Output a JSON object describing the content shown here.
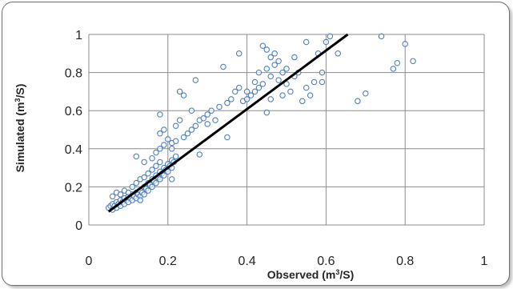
{
  "chart_data": {
    "type": "scatter",
    "title": "",
    "xlabel": "Observed (m",
    "xlabel_sup": "3",
    "xlabel_end": "/S)",
    "ylabel": "Simulated (m",
    "ylabel_sup": "3",
    "ylabel_end": "/S)",
    "xlim": [
      0,
      1
    ],
    "ylim": [
      0,
      1
    ],
    "xticks": [
      0,
      0.2,
      0.4,
      0.6,
      0.8,
      1
    ],
    "yticks": [
      0,
      0.2,
      0.4,
      0.6,
      0.8,
      1
    ],
    "xtick_labels": [
      "0",
      "0.2",
      "0.4",
      "0.6",
      "0.8",
      "1"
    ],
    "ytick_labels": [
      "0",
      "0.2",
      "0.4",
      "0.6",
      "0.8",
      "1"
    ],
    "grid": true,
    "legend": "none",
    "colors": {
      "marker": "#4f81bd",
      "fit_line": "#000000",
      "grid": "#8c8c8c"
    },
    "fit_line": {
      "x": [
        0.05,
        0.655
      ],
      "y": [
        0.07,
        1.0
      ]
    },
    "series": [
      {
        "points": [
          [
            0.05,
            0.09
          ],
          [
            0.055,
            0.1
          ],
          [
            0.06,
            0.08
          ],
          [
            0.06,
            0.11
          ],
          [
            0.065,
            0.1
          ],
          [
            0.07,
            0.09
          ],
          [
            0.07,
            0.12
          ],
          [
            0.075,
            0.11
          ],
          [
            0.08,
            0.1
          ],
          [
            0.08,
            0.13
          ],
          [
            0.085,
            0.12
          ],
          [
            0.09,
            0.11
          ],
          [
            0.09,
            0.14
          ],
          [
            0.095,
            0.13
          ],
          [
            0.1,
            0.12
          ],
          [
            0.1,
            0.15
          ],
          [
            0.105,
            0.14
          ],
          [
            0.11,
            0.13
          ],
          [
            0.11,
            0.16
          ],
          [
            0.115,
            0.15
          ],
          [
            0.12,
            0.14
          ],
          [
            0.12,
            0.17
          ],
          [
            0.125,
            0.16
          ],
          [
            0.13,
            0.15
          ],
          [
            0.13,
            0.18
          ],
          [
            0.135,
            0.17
          ],
          [
            0.14,
            0.16
          ],
          [
            0.14,
            0.2
          ],
          [
            0.145,
            0.19
          ],
          [
            0.15,
            0.18
          ],
          [
            0.15,
            0.22
          ],
          [
            0.155,
            0.21
          ],
          [
            0.16,
            0.2
          ],
          [
            0.16,
            0.24
          ],
          [
            0.165,
            0.23
          ],
          [
            0.17,
            0.22
          ],
          [
            0.17,
            0.26
          ],
          [
            0.175,
            0.25
          ],
          [
            0.18,
            0.24
          ],
          [
            0.18,
            0.28
          ],
          [
            0.185,
            0.27
          ],
          [
            0.19,
            0.26
          ],
          [
            0.19,
            0.3
          ],
          [
            0.195,
            0.29
          ],
          [
            0.2,
            0.28
          ],
          [
            0.2,
            0.32
          ],
          [
            0.205,
            0.31
          ],
          [
            0.21,
            0.3
          ],
          [
            0.21,
            0.34
          ],
          [
            0.215,
            0.33
          ],
          [
            0.06,
            0.15
          ],
          [
            0.07,
            0.17
          ],
          [
            0.08,
            0.16
          ],
          [
            0.09,
            0.18
          ],
          [
            0.1,
            0.17
          ],
          [
            0.11,
            0.2
          ],
          [
            0.12,
            0.22
          ],
          [
            0.13,
            0.24
          ],
          [
            0.14,
            0.25
          ],
          [
            0.15,
            0.27
          ],
          [
            0.16,
            0.29
          ],
          [
            0.17,
            0.31
          ],
          [
            0.18,
            0.33
          ],
          [
            0.12,
            0.36
          ],
          [
            0.14,
            0.33
          ],
          [
            0.16,
            0.35
          ],
          [
            0.17,
            0.38
          ],
          [
            0.18,
            0.4
          ],
          [
            0.18,
            0.48
          ],
          [
            0.19,
            0.42
          ],
          [
            0.19,
            0.5
          ],
          [
            0.18,
            0.58
          ],
          [
            0.2,
            0.45
          ],
          [
            0.21,
            0.4
          ],
          [
            0.21,
            0.43
          ],
          [
            0.22,
            0.44
          ],
          [
            0.22,
            0.52
          ],
          [
            0.23,
            0.55
          ],
          [
            0.23,
            0.7
          ],
          [
            0.24,
            0.46
          ],
          [
            0.25,
            0.48
          ],
          [
            0.26,
            0.5
          ],
          [
            0.27,
            0.52
          ],
          [
            0.27,
            0.76
          ],
          [
            0.28,
            0.55
          ],
          [
            0.29,
            0.56
          ],
          [
            0.3,
            0.58
          ],
          [
            0.31,
            0.6
          ],
          [
            0.33,
            0.62
          ],
          [
            0.34,
            0.83
          ],
          [
            0.35,
            0.46
          ],
          [
            0.35,
            0.64
          ],
          [
            0.36,
            0.66
          ],
          [
            0.37,
            0.7
          ],
          [
            0.38,
            0.72
          ],
          [
            0.39,
            0.65
          ],
          [
            0.4,
            0.66
          ],
          [
            0.4,
            0.7
          ],
          [
            0.41,
            0.68
          ],
          [
            0.42,
            0.75
          ],
          [
            0.42,
            0.7
          ],
          [
            0.43,
            0.72
          ],
          [
            0.43,
            0.8
          ],
          [
            0.44,
            0.74
          ],
          [
            0.44,
            0.94
          ],
          [
            0.45,
            0.82
          ],
          [
            0.45,
            0.92
          ],
          [
            0.46,
            0.88
          ],
          [
            0.46,
            0.78
          ],
          [
            0.47,
            0.9
          ],
          [
            0.47,
            0.84
          ],
          [
            0.48,
            0.76
          ],
          [
            0.48,
            0.86
          ],
          [
            0.49,
            0.8
          ],
          [
            0.49,
            0.68
          ],
          [
            0.5,
            0.82
          ],
          [
            0.5,
            0.74
          ],
          [
            0.51,
            0.7
          ],
          [
            0.52,
            0.88
          ],
          [
            0.52,
            0.78
          ],
          [
            0.53,
            0.8
          ],
          [
            0.54,
            0.65
          ],
          [
            0.55,
            0.72
          ],
          [
            0.55,
            0.96
          ],
          [
            0.56,
            0.68
          ],
          [
            0.57,
            0.75
          ],
          [
            0.58,
            0.9
          ],
          [
            0.59,
            0.8
          ],
          [
            0.59,
            0.75
          ],
          [
            0.6,
            0.96
          ],
          [
            0.61,
            0.99
          ],
          [
            0.63,
            0.9
          ],
          [
            0.68,
            0.65
          ],
          [
            0.7,
            0.69
          ],
          [
            0.74,
            0.99
          ],
          [
            0.77,
            0.82
          ],
          [
            0.78,
            0.85
          ],
          [
            0.8,
            0.95
          ],
          [
            0.82,
            0.86
          ],
          [
            0.45,
            0.59
          ],
          [
            0.3,
            0.53
          ],
          [
            0.32,
            0.55
          ],
          [
            0.28,
            0.37
          ],
          [
            0.26,
            0.6
          ],
          [
            0.24,
            0.68
          ],
          [
            0.21,
            0.24
          ],
          [
            0.13,
            0.13
          ],
          [
            0.22,
            0.36
          ],
          [
            0.38,
            0.9
          ],
          [
            0.46,
            0.66
          ]
        ]
      }
    ]
  }
}
